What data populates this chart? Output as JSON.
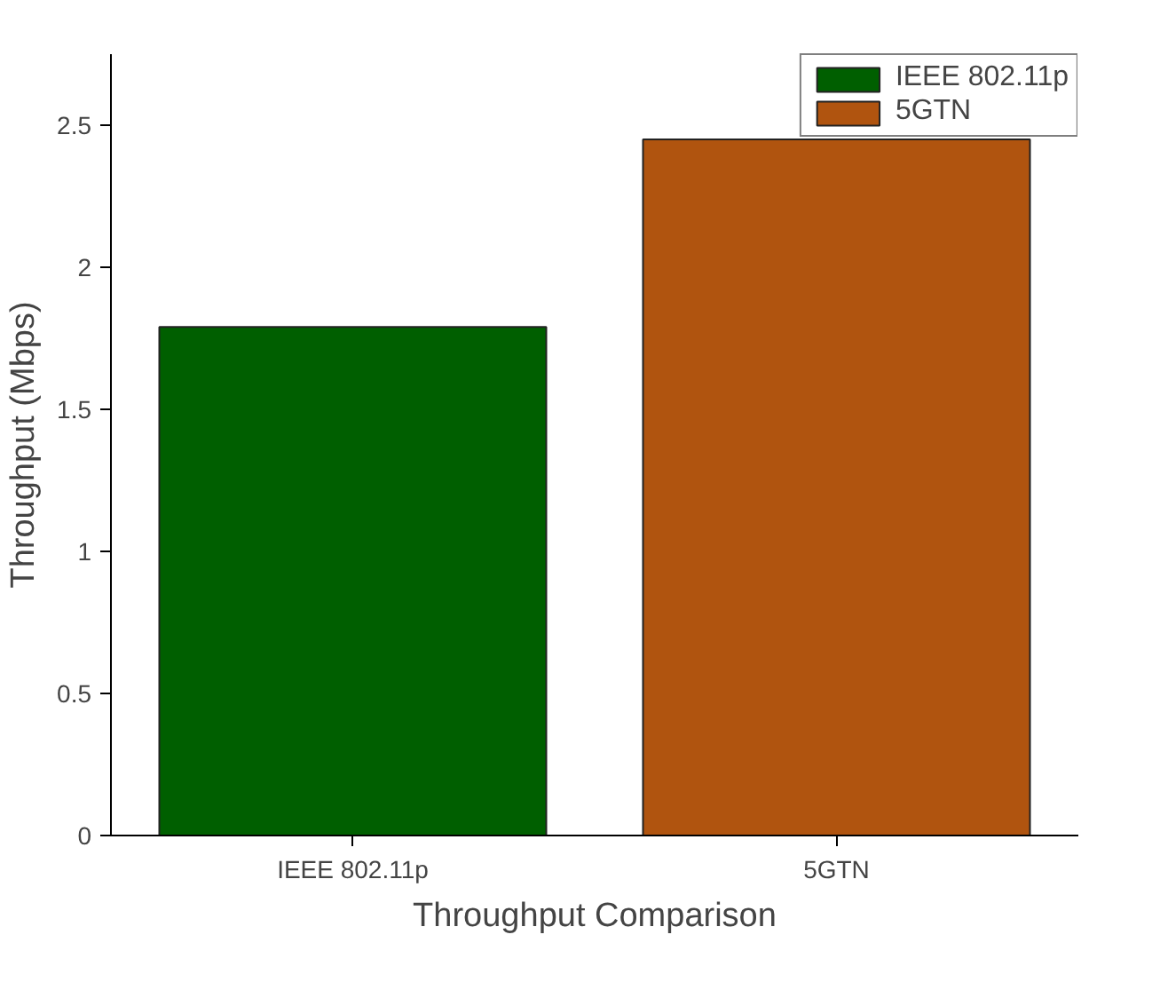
{
  "chart_data": {
    "type": "bar",
    "xlabel": "Throughput Comparison",
    "ylabel": "Throughput (Mbps)",
    "categories": [
      "IEEE 802.11p",
      "5GTN"
    ],
    "series": [
      {
        "name": "IEEE 802.11p",
        "color": "#005f00",
        "values": [
          1.79,
          null
        ]
      },
      {
        "name": "5GTN",
        "color": "#b0540f",
        "values": [
          null,
          2.45
        ]
      }
    ],
    "ylim": [
      0,
      2.75
    ],
    "yticks": [
      0,
      {
        "value": 0.5,
        "label": "0.5"
      },
      1,
      {
        "value": 1.5,
        "label": "1.5"
      },
      2,
      {
        "value": 2.5,
        "label": "2.5"
      }
    ],
    "legend": "top right"
  }
}
